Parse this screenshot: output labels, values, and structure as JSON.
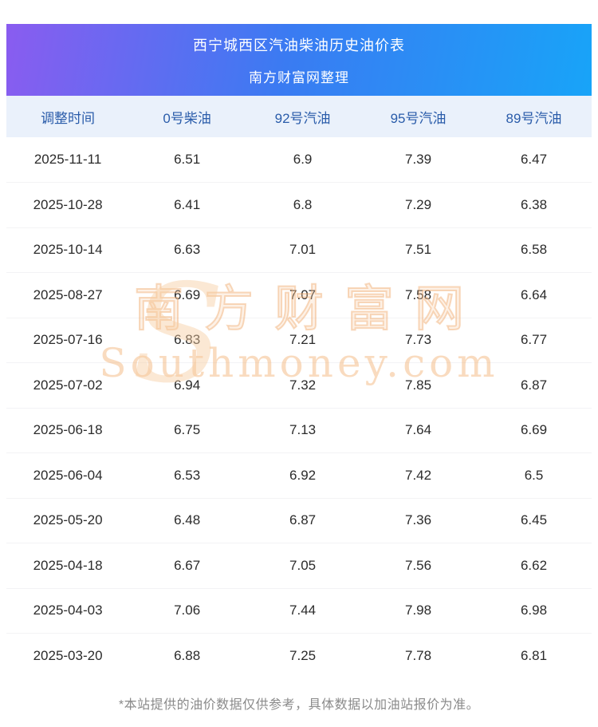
{
  "header": {
    "title": "西宁城西区汽油柴油历史油价表",
    "subtitle": "南方财富网整理"
  },
  "chart_data": {
    "type": "table",
    "title": "西宁城西区汽油柴油历史油价表",
    "columns": [
      "调整时间",
      "0号柴油",
      "92号汽油",
      "95号汽油",
      "89号汽油"
    ],
    "rows": [
      [
        "2025-11-11",
        "6.51",
        "6.9",
        "7.39",
        "6.47"
      ],
      [
        "2025-10-28",
        "6.41",
        "6.8",
        "7.29",
        "6.38"
      ],
      [
        "2025-10-14",
        "6.63",
        "7.01",
        "7.51",
        "6.58"
      ],
      [
        "2025-08-27",
        "6.69",
        "7.07",
        "7.58",
        "6.64"
      ],
      [
        "2025-07-16",
        "6.83",
        "7.21",
        "7.73",
        "6.77"
      ],
      [
        "2025-07-02",
        "6.94",
        "7.32",
        "7.85",
        "6.87"
      ],
      [
        "2025-06-18",
        "6.75",
        "7.13",
        "7.64",
        "6.69"
      ],
      [
        "2025-06-04",
        "6.53",
        "6.92",
        "7.42",
        "6.5"
      ],
      [
        "2025-05-20",
        "6.48",
        "6.87",
        "7.36",
        "6.45"
      ],
      [
        "2025-04-18",
        "6.67",
        "7.05",
        "7.56",
        "6.62"
      ],
      [
        "2025-04-03",
        "7.06",
        "7.44",
        "7.98",
        "6.98"
      ],
      [
        "2025-03-20",
        "6.88",
        "7.25",
        "7.78",
        "6.81"
      ]
    ]
  },
  "watermark": {
    "s_logo": "S",
    "cn": "南方财富网",
    "en": "Southmoney.com"
  },
  "footer": {
    "note": "*本站提供的油价数据仅供参考，具体数据以加油站报价为准。"
  },
  "colors": {
    "gradient_start": "#8a5cf0",
    "gradient_end": "#18a4f8",
    "header_row_bg": "#eaf1fb",
    "header_row_text": "#2a5caa",
    "watermark_orange": "#f0a55f"
  }
}
